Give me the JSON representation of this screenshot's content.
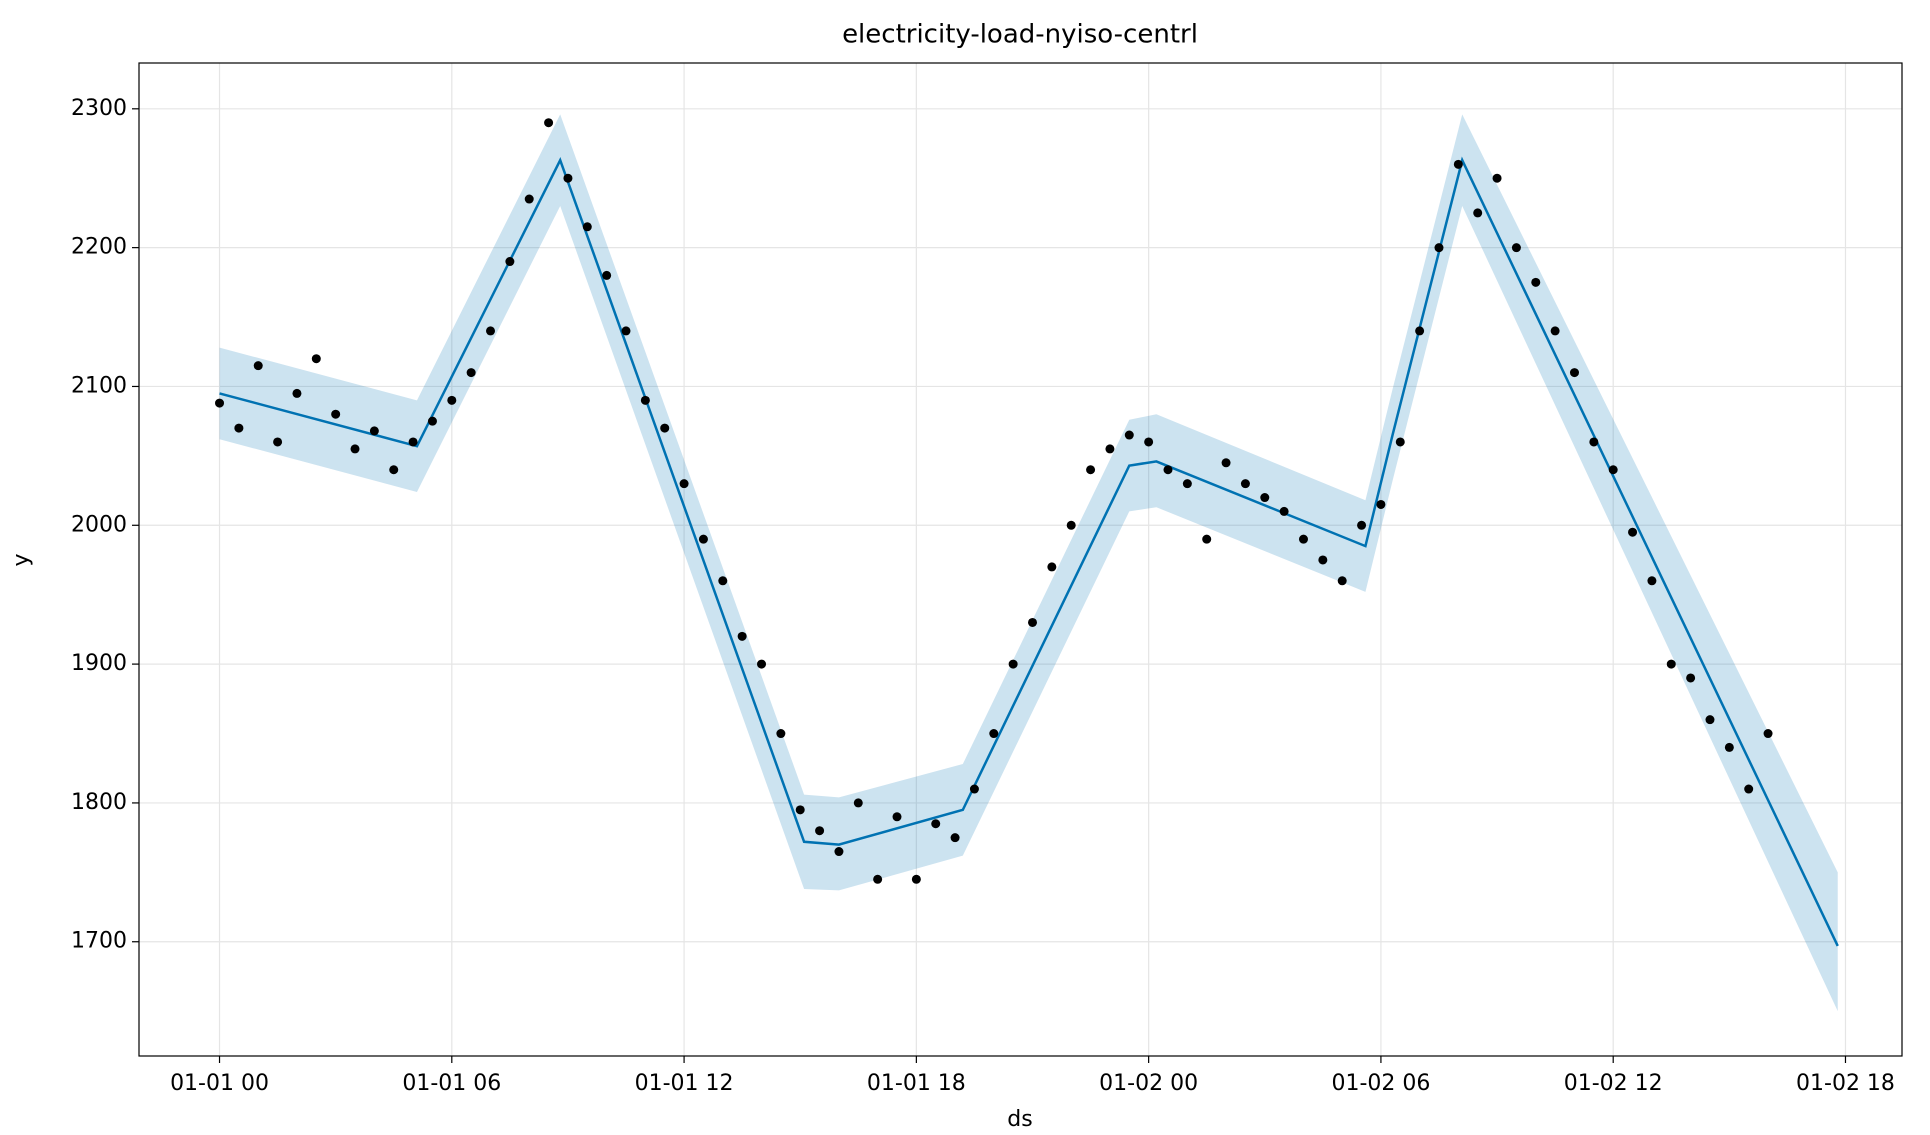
{
  "chart_data": {
    "type": "forecast",
    "title": "electricity-load-nyiso-centrl",
    "xlabel": "ds",
    "ylabel": "y",
    "xlim": [
      -2.08,
      43.46
    ],
    "ylim": [
      1617.7,
      2333
    ],
    "xticks": [
      {
        "value": 0,
        "label": "01-01 00"
      },
      {
        "value": 6,
        "label": "01-01 06"
      },
      {
        "value": 12,
        "label": "01-01 12"
      },
      {
        "value": 18,
        "label": "01-01 18"
      },
      {
        "value": 24,
        "label": "01-02 00"
      },
      {
        "value": 30,
        "label": "01-02 06"
      },
      {
        "value": 36,
        "label": "01-02 12"
      },
      {
        "value": 42,
        "label": "01-02 18"
      }
    ],
    "yticks": [
      1700,
      1800,
      1900,
      2000,
      2100,
      2200,
      2300
    ],
    "grid": true,
    "observed": {
      "color": "#000000",
      "x": [
        0,
        0.5,
        1,
        1.5,
        2,
        2.5,
        3,
        3.5,
        4,
        4.5,
        5,
        5.5,
        6,
        6.5,
        7,
        7.5,
        8,
        8.5,
        9,
        9.5,
        10,
        10.5,
        11,
        11.5,
        12,
        12.5,
        13,
        13.5,
        14,
        14.5,
        15,
        15.5,
        16,
        16.5,
        17,
        17.5,
        18,
        18.5,
        19,
        19.5,
        20,
        20.5,
        21,
        21.5,
        22,
        22.5,
        23,
        23.5,
        24,
        24.5,
        25,
        25.5,
        26,
        26.5,
        27,
        27.5,
        28,
        28.5,
        29,
        29.5,
        30,
        30.5,
        31,
        31.5,
        32,
        32.5,
        33,
        33.5,
        34,
        34.5,
        35,
        35.5,
        36,
        36.5,
        37,
        37.5,
        38,
        38.5,
        39,
        39.5,
        40
      ],
      "values": [
        2088,
        2070,
        2115,
        2060,
        2095,
        2120,
        2080,
        2055,
        2068,
        2040,
        2060,
        2075,
        2090,
        2110,
        2140,
        2190,
        2235,
        2290,
        2250,
        2215,
        2180,
        2140,
        2090,
        2070,
        2030,
        1990,
        1960,
        1920,
        1900,
        1850,
        1795,
        1780,
        1765,
        1800,
        1745,
        1790,
        1745,
        1785,
        1775,
        1810,
        1850,
        1900,
        1930,
        1970,
        2000,
        2040,
        2055,
        2065,
        2060,
        2040,
        2030,
        1990,
        2045,
        2030,
        2020,
        2010,
        1990,
        1975,
        1960,
        2000,
        2015,
        2060,
        2140,
        2200,
        2260,
        2225,
        2250,
        2200,
        2175,
        2140,
        2110,
        2060,
        2040,
        1995,
        1960,
        1900,
        1890,
        1860,
        1840,
        1810,
        1850
      ]
    },
    "forecast": {
      "color": "#0072B2",
      "x": [
        0,
        5.1,
        8.8,
        15.1,
        16,
        19.2,
        23.5,
        24.2,
        29.6,
        30.3,
        32.1,
        41.8
      ],
      "values": [
        2095,
        2057,
        2263,
        1772,
        1770,
        1795,
        2043,
        2046,
        1985,
        2065,
        2263,
        1697
      ],
      "lower": [
        2062,
        2024,
        2230,
        1738,
        1737,
        1762,
        2010,
        2013,
        1952,
        2032,
        2230,
        1650
      ],
      "upper": [
        2128,
        2090,
        2296,
        1806,
        1804,
        1828,
        2076,
        2080,
        2018,
        2098,
        2296,
        1750
      ]
    }
  }
}
